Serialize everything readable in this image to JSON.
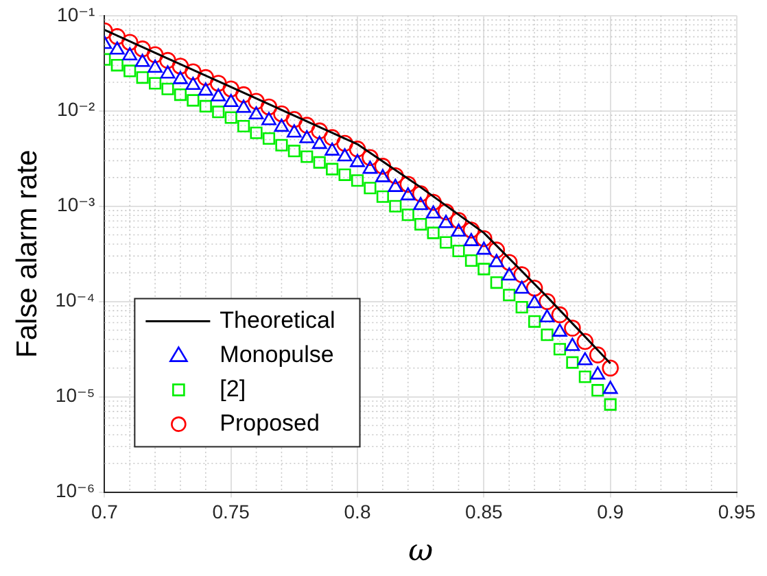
{
  "chart_data": {
    "type": "scatter",
    "xlabel": "ω",
    "ylabel": "False alarm rate",
    "log": "y",
    "grid": true,
    "legend": "bottom left",
    "xlim": [
      0.7,
      0.95
    ],
    "xticks": [
      0.7,
      0.75,
      0.8,
      0.85,
      0.9,
      0.95
    ],
    "ylim": [
      1e-06,
      0.1
    ],
    "yticks": [
      {
        "value": 1e-06,
        "label": "10⁻⁶"
      },
      {
        "value": 1e-05,
        "label": "10⁻⁵"
      },
      {
        "value": 0.0001,
        "label": "10⁻⁴"
      },
      {
        "value": 0.001,
        "label": "10⁻³"
      },
      {
        "value": 0.01,
        "label": "10⁻²"
      },
      {
        "value": 0.1,
        "label": "10⁻¹"
      }
    ],
    "x": [
      0.7,
      0.705,
      0.71,
      0.715,
      0.72,
      0.725,
      0.73,
      0.735,
      0.74,
      0.745,
      0.75,
      0.755,
      0.76,
      0.765,
      0.77,
      0.775,
      0.78,
      0.785,
      0.79,
      0.795,
      0.8,
      0.805,
      0.81,
      0.815,
      0.82,
      0.825,
      0.83,
      0.835,
      0.84,
      0.845,
      0.85,
      0.855,
      0.86,
      0.865,
      0.87,
      0.875,
      0.88,
      0.885,
      0.89,
      0.895,
      0.9
    ],
    "series": [
      {
        "name": "Theoretical",
        "type": "line",
        "marker": "none",
        "line_style": "solid",
        "color": "#000000",
        "x": [
          0.7,
          0.725,
          0.75,
          0.775,
          0.8,
          0.825,
          0.85,
          0.875,
          0.8875,
          0.9
        ],
        "values": [
          0.0708,
          0.0355,
          0.0178,
          0.00891,
          0.00447,
          0.00158,
          0.000525,
          0.000112,
          5.01e-05,
          2.24e-05
        ]
      },
      {
        "name": "Monopulse",
        "marker": "triangle",
        "color": "#0000ff",
        "values": [
          0.0501,
          0.0437,
          0.038,
          0.0324,
          0.0282,
          0.0245,
          0.0214,
          0.0186,
          0.0162,
          0.0141,
          0.0123,
          0.0107,
          0.00912,
          0.00794,
          0.00676,
          0.00589,
          0.00513,
          0.00447,
          0.0038,
          0.00331,
          0.00288,
          0.00245,
          0.002,
          0.00158,
          0.00129,
          0.00102,
          0.000832,
          0.000661,
          0.000537,
          0.000427,
          0.000347,
          0.000257,
          0.000186,
          0.000135,
          9.55e-05,
          6.76e-05,
          4.79e-05,
          3.39e-05,
          2.4e-05,
          1.7e-05,
          1.2e-05
        ]
      },
      {
        "name": "[2]",
        "marker": "square",
        "color": "#00ee00",
        "values": [
          0.0347,
          0.0302,
          0.0263,
          0.0224,
          0.0195,
          0.017,
          0.0148,
          0.0129,
          0.0112,
          0.00977,
          0.00851,
          0.00692,
          0.00589,
          0.00513,
          0.00437,
          0.0038,
          0.00331,
          0.00288,
          0.00245,
          0.00214,
          0.00186,
          0.00155,
          0.00126,
          0.001,
          0.000813,
          0.000646,
          0.000525,
          0.000417,
          0.000339,
          0.000269,
          0.000219,
          0.000158,
          0.000117,
          8.71e-05,
          6.17e-05,
          4.47e-05,
          3.16e-05,
          2.29e-05,
          1.62e-05,
          1.17e-05,
          8.3e-06
        ]
      },
      {
        "name": "Proposed",
        "marker": "circle",
        "color": "#ff0000",
        "values": [
          0.0692,
          0.0603,
          0.0525,
          0.0447,
          0.0389,
          0.0339,
          0.0295,
          0.0257,
          0.0224,
          0.0195,
          0.017,
          0.0148,
          0.0126,
          0.011,
          0.00933,
          0.00813,
          0.00708,
          0.00617,
          0.00525,
          0.00457,
          0.00398,
          0.00324,
          0.00263,
          0.00209,
          0.0017,
          0.00135,
          0.0011,
          0.000871,
          0.000708,
          0.000562,
          0.000457,
          0.000347,
          0.000257,
          0.000191,
          0.000138,
          0.0001,
          7.24e-05,
          5.25e-05,
          3.8e-05,
          2.75e-05,
          2e-05
        ]
      }
    ]
  }
}
